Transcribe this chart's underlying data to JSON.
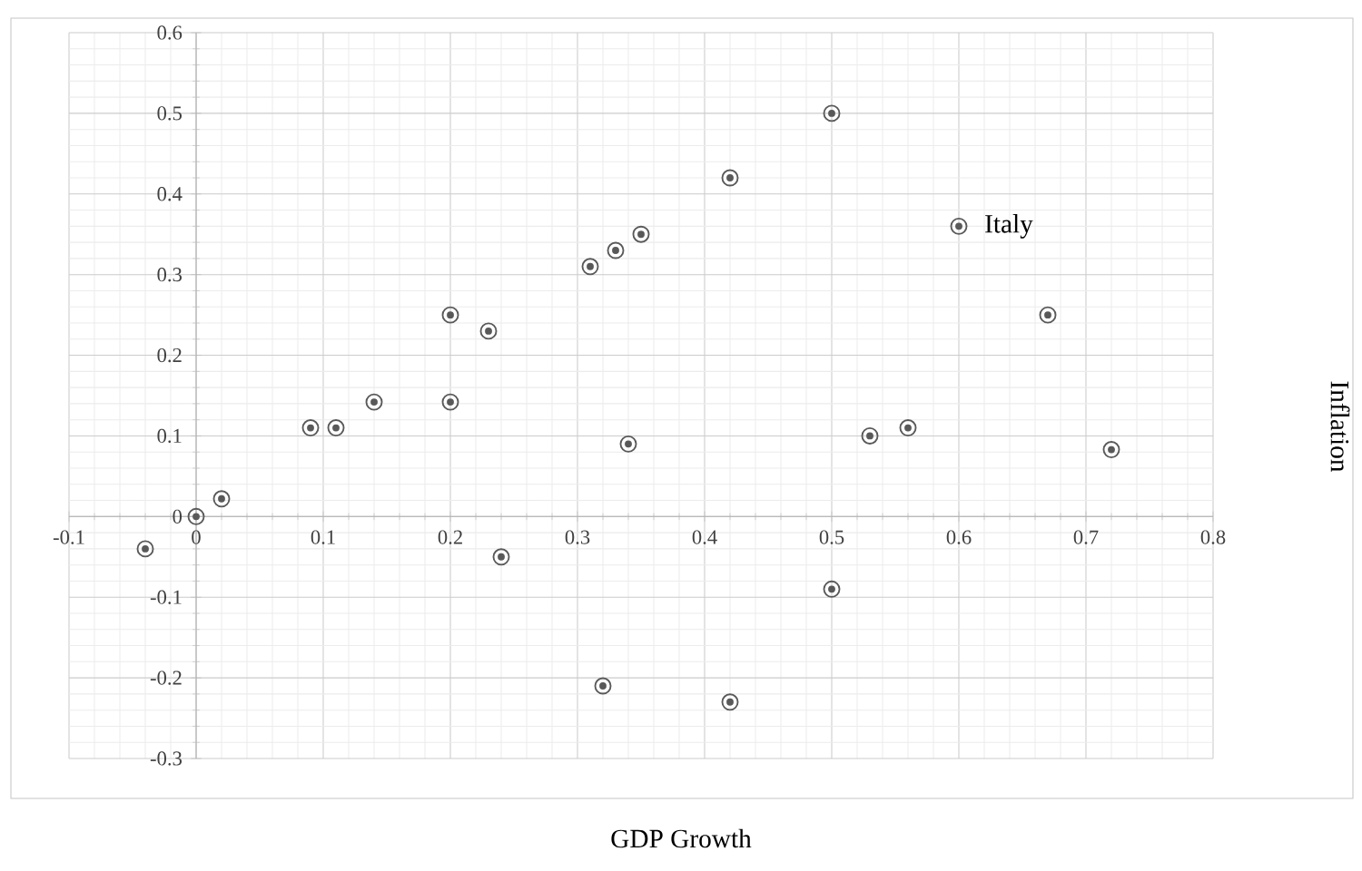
{
  "chart_data": {
    "type": "scatter",
    "xlabel": "GDP Growth",
    "ylabel": "Inflation",
    "x": [
      -0.04,
      0,
      0.02,
      0.09,
      0.11,
      0.14,
      0.2,
      0.2,
      0.23,
      0.24,
      0.31,
      0.33,
      0.35,
      0.34,
      0.32,
      0.42,
      0.42,
      0.5,
      0.5,
      0.53,
      0.56,
      0.6,
      0.67,
      0.72
    ],
    "series": [
      {
        "color": "#595959",
        "values": [
          -0.04,
          0,
          0.022,
          0.11,
          0.11,
          0.142,
          0.25,
          0.142,
          0.23,
          -0.05,
          0.31,
          0.33,
          0.35,
          0.09,
          -0.21,
          0.42,
          -0.23,
          0.5,
          -0.09,
          0.1,
          0.11,
          0.36,
          0.25,
          0.083
        ]
      }
    ],
    "annotations": [
      {
        "text": "Italy",
        "x": 0.6,
        "y": 0.36
      }
    ],
    "xlim": [
      -0.1,
      0.8
    ],
    "ylim": [
      -0.3,
      0.6
    ],
    "xticks": [
      -0.1,
      0,
      0.1,
      0.2,
      0.3,
      0.4,
      0.5,
      0.6,
      0.7,
      0.8
    ],
    "yticks": [
      -0.3,
      -0.2,
      -0.1,
      0,
      0.1,
      0.2,
      0.3,
      0.4,
      0.5,
      0.6
    ],
    "grid": true,
    "marker": "circle"
  }
}
